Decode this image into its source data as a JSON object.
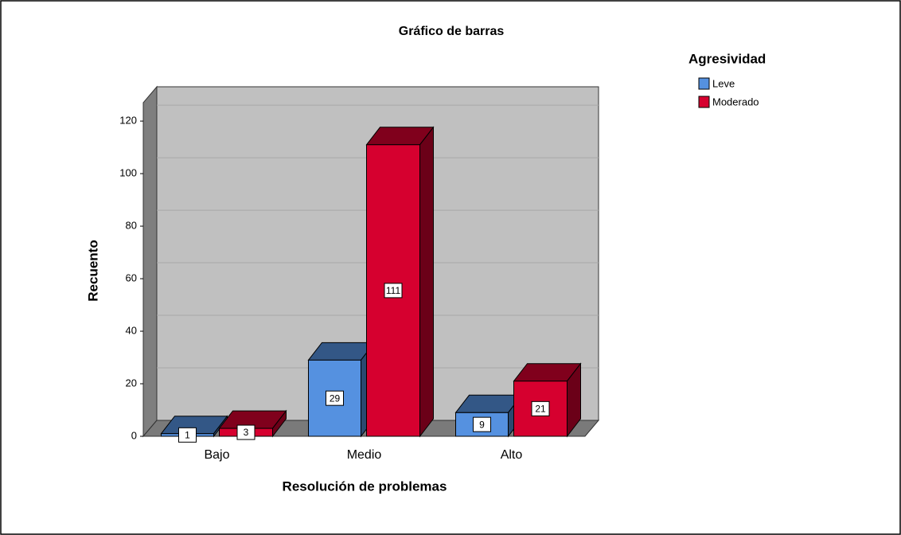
{
  "chart_data": {
    "type": "bar3d",
    "title": "Gráfico de barras",
    "x_label": "Resolución de problemas",
    "y_label": "Recuento",
    "legend_title": "Agresividad",
    "categories": [
      "Bajo",
      "Medio",
      "Alto"
    ],
    "series": [
      {
        "name": "Leve",
        "color": "#5591e0",
        "values": [
          1,
          29,
          9
        ]
      },
      {
        "name": "Moderado",
        "color": "#d6002f",
        "values": [
          3,
          111,
          21
        ]
      }
    ],
    "ylim": [
      0,
      127
    ],
    "yticks": [
      0,
      20,
      40,
      60,
      80,
      100,
      120
    ],
    "grid": true,
    "legend": "right"
  }
}
